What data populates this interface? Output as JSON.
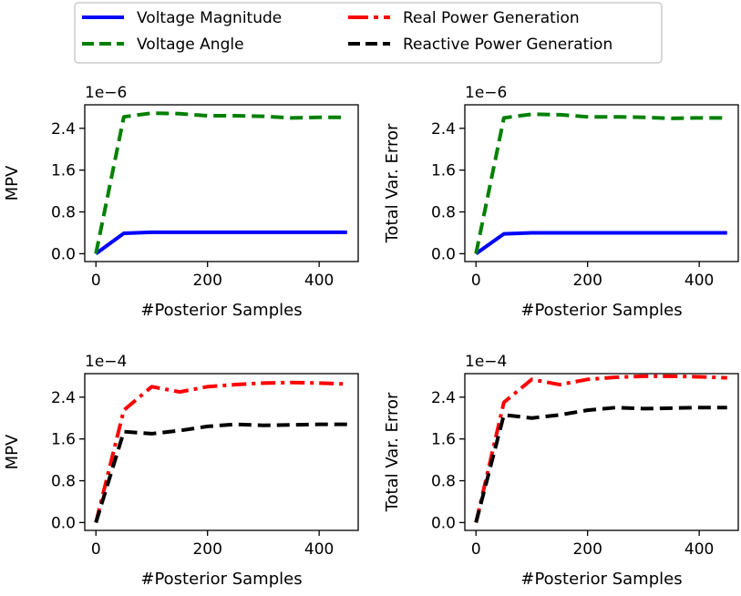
{
  "legend": {
    "placement": "top-center",
    "entries": [
      {
        "name": "Voltage Magnitude",
        "color": "#0000ff",
        "style": "solid"
      },
      {
        "name": "Voltage Angle",
        "color": "#008000",
        "style": "dashed"
      },
      {
        "name": "Real Power Generation",
        "color": "#ff0000",
        "style": "dashdot"
      },
      {
        "name": "Reactive Power Generation",
        "color": "#000000",
        "style": "dashed"
      }
    ]
  },
  "chart_data": [
    {
      "type": "line",
      "xlabel": "#Posterior Samples",
      "ylabel": "MPV",
      "offset_text": "1e−6",
      "xlim": [
        -20,
        470
      ],
      "ylim": [
        -0.15,
        2.85
      ],
      "xticks": [
        0,
        200,
        400
      ],
      "yticks": [
        0.0,
        0.8,
        1.6,
        2.4
      ],
      "ytick_labels": [
        "0.0",
        "0.8",
        "1.6",
        "2.4"
      ],
      "series": [
        {
          "name": "Voltage Magnitude",
          "color": "#0000ff",
          "style": "solid",
          "x": [
            0,
            50,
            100,
            150,
            200,
            250,
            300,
            350,
            400,
            450
          ],
          "y": [
            0.0,
            0.39,
            0.41,
            0.41,
            0.41,
            0.41,
            0.41,
            0.41,
            0.41,
            0.41
          ]
        },
        {
          "name": "Voltage Angle",
          "color": "#008000",
          "style": "dashed",
          "x": [
            0,
            50,
            100,
            150,
            200,
            250,
            300,
            350,
            400,
            450
          ],
          "y": [
            0.0,
            2.62,
            2.69,
            2.68,
            2.64,
            2.64,
            2.63,
            2.6,
            2.61,
            2.61
          ]
        }
      ]
    },
    {
      "type": "line",
      "xlabel": "#Posterior Samples",
      "ylabel": "Total Var. Error",
      "offset_text": "1e−6",
      "xlim": [
        -20,
        470
      ],
      "ylim": [
        -0.15,
        2.85
      ],
      "xticks": [
        0,
        200,
        400
      ],
      "yticks": [
        0.0,
        0.8,
        1.6,
        2.4
      ],
      "ytick_labels": [
        "0.0",
        "0.8",
        "1.6",
        "2.4"
      ],
      "series": [
        {
          "name": "Voltage Magnitude",
          "color": "#0000ff",
          "style": "solid",
          "x": [
            0,
            50,
            100,
            150,
            200,
            250,
            300,
            350,
            400,
            450
          ],
          "y": [
            0.0,
            0.38,
            0.4,
            0.4,
            0.4,
            0.4,
            0.4,
            0.4,
            0.4,
            0.4
          ]
        },
        {
          "name": "Voltage Angle",
          "color": "#008000",
          "style": "dashed",
          "x": [
            0,
            50,
            100,
            150,
            200,
            250,
            300,
            350,
            400,
            450
          ],
          "y": [
            0.0,
            2.6,
            2.67,
            2.66,
            2.62,
            2.62,
            2.61,
            2.59,
            2.6,
            2.6
          ]
        }
      ]
    },
    {
      "type": "line",
      "xlabel": "#Posterior Samples",
      "ylabel": "MPV",
      "offset_text": "1e−4",
      "xlim": [
        -20,
        470
      ],
      "ylim": [
        -0.15,
        2.85
      ],
      "xticks": [
        0,
        200,
        400
      ],
      "yticks": [
        0.0,
        0.8,
        1.6,
        2.4
      ],
      "ytick_labels": [
        "0.0",
        "0.8",
        "1.6",
        "2.4"
      ],
      "series": [
        {
          "name": "Real Power Generation",
          "color": "#ff0000",
          "style": "dashdot",
          "x": [
            0,
            50,
            100,
            150,
            200,
            250,
            300,
            350,
            400,
            450
          ],
          "y": [
            0.0,
            2.15,
            2.6,
            2.5,
            2.6,
            2.64,
            2.67,
            2.68,
            2.67,
            2.65
          ]
        },
        {
          "name": "Reactive Power Generation",
          "color": "#000000",
          "style": "dashed",
          "x": [
            0,
            50,
            100,
            150,
            200,
            250,
            300,
            350,
            400,
            450
          ],
          "y": [
            0.0,
            1.74,
            1.7,
            1.76,
            1.84,
            1.88,
            1.86,
            1.87,
            1.88,
            1.88
          ]
        }
      ]
    },
    {
      "type": "line",
      "xlabel": "#Posterior Samples",
      "ylabel": "Total Var. Error",
      "offset_text": "1e−4",
      "xlim": [
        -20,
        470
      ],
      "ylim": [
        -0.15,
        2.85
      ],
      "xticks": [
        0,
        200,
        400
      ],
      "yticks": [
        0.0,
        0.8,
        1.6,
        2.4
      ],
      "ytick_labels": [
        "0.0",
        "0.8",
        "1.6",
        "2.4"
      ],
      "series": [
        {
          "name": "Real Power Generation",
          "color": "#ff0000",
          "style": "dashdot",
          "x": [
            0,
            50,
            100,
            150,
            200,
            250,
            300,
            350,
            400,
            450
          ],
          "y": [
            0.0,
            2.3,
            2.74,
            2.64,
            2.74,
            2.78,
            2.8,
            2.8,
            2.79,
            2.77
          ]
        },
        {
          "name": "Reactive Power Generation",
          "color": "#000000",
          "style": "dashed",
          "x": [
            0,
            50,
            100,
            150,
            200,
            250,
            300,
            350,
            400,
            450
          ],
          "y": [
            0.0,
            2.06,
            2.0,
            2.06,
            2.15,
            2.2,
            2.18,
            2.19,
            2.2,
            2.2
          ]
        }
      ]
    }
  ]
}
